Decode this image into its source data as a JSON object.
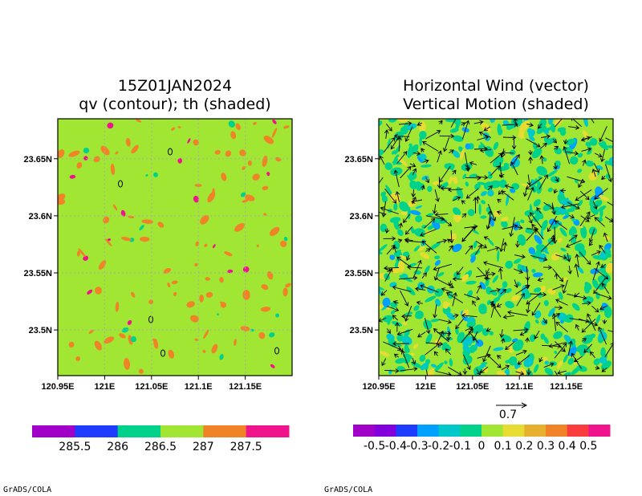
{
  "credit": "GrADS/COLA",
  "chart_data": [
    {
      "type": "heatmap",
      "title_lines": [
        "15Z01JAN2024",
        "qv (contour); th (shaded)"
      ],
      "xlabel": "",
      "ylabel": "",
      "x_range": [
        120.95,
        121.2
      ],
      "y_range": [
        23.46,
        23.685
      ],
      "x_ticks": [
        120.95,
        121.0,
        121.05,
        121.1,
        121.15
      ],
      "x_tick_labels": [
        "120.95E",
        "121E",
        "121.05E",
        "121.1E",
        "121.15E"
      ],
      "y_ticks": [
        23.5,
        23.55,
        23.6,
        23.65
      ],
      "y_tick_labels": [
        "23.5N",
        "23.55N",
        "23.6N",
        "23.65N"
      ],
      "grid": true,
      "background_color": "#a0e632",
      "field": "th",
      "colorbar": {
        "colors": [
          "#a000c8",
          "#1e3cff",
          "#00d28c",
          "#a0e632",
          "#f08228",
          "#f0148c"
        ],
        "labels": [
          "285.5",
          "286",
          "286.5",
          "287",
          "287.5"
        ]
      }
    },
    {
      "type": "heatmap",
      "title_lines": [
        "Horizontal Wind (vector)",
        "Vertical Motion (shaded)"
      ],
      "xlabel": "",
      "ylabel": "",
      "x_range": [
        120.95,
        121.2
      ],
      "y_range": [
        23.46,
        23.685
      ],
      "x_ticks": [
        120.95,
        121.0,
        121.05,
        121.1,
        121.15
      ],
      "x_tick_labels": [
        "120.95E",
        "121E",
        "121.05E",
        "121.1E",
        "121.15E"
      ],
      "y_ticks": [
        23.5,
        23.55,
        23.6,
        23.65
      ],
      "y_tick_labels": [
        "23.5N",
        "23.55N",
        "23.6N",
        "23.65N"
      ],
      "grid": false,
      "vector_reference": "0.7",
      "colorbar": {
        "colors": [
          "#a000c8",
          "#8200dc",
          "#1e3cff",
          "#00a0ff",
          "#00c8c8",
          "#00d28c",
          "#a0e632",
          "#e6dc32",
          "#e6af2d",
          "#f08228",
          "#fa3c3c",
          "#f0148c"
        ],
        "labels": [
          "-0.5",
          "-0.4",
          "-0.3",
          "-0.2",
          "-0.1",
          "0",
          "0.1",
          "0.2",
          "0.3",
          "0.4",
          "0.5"
        ]
      }
    }
  ]
}
